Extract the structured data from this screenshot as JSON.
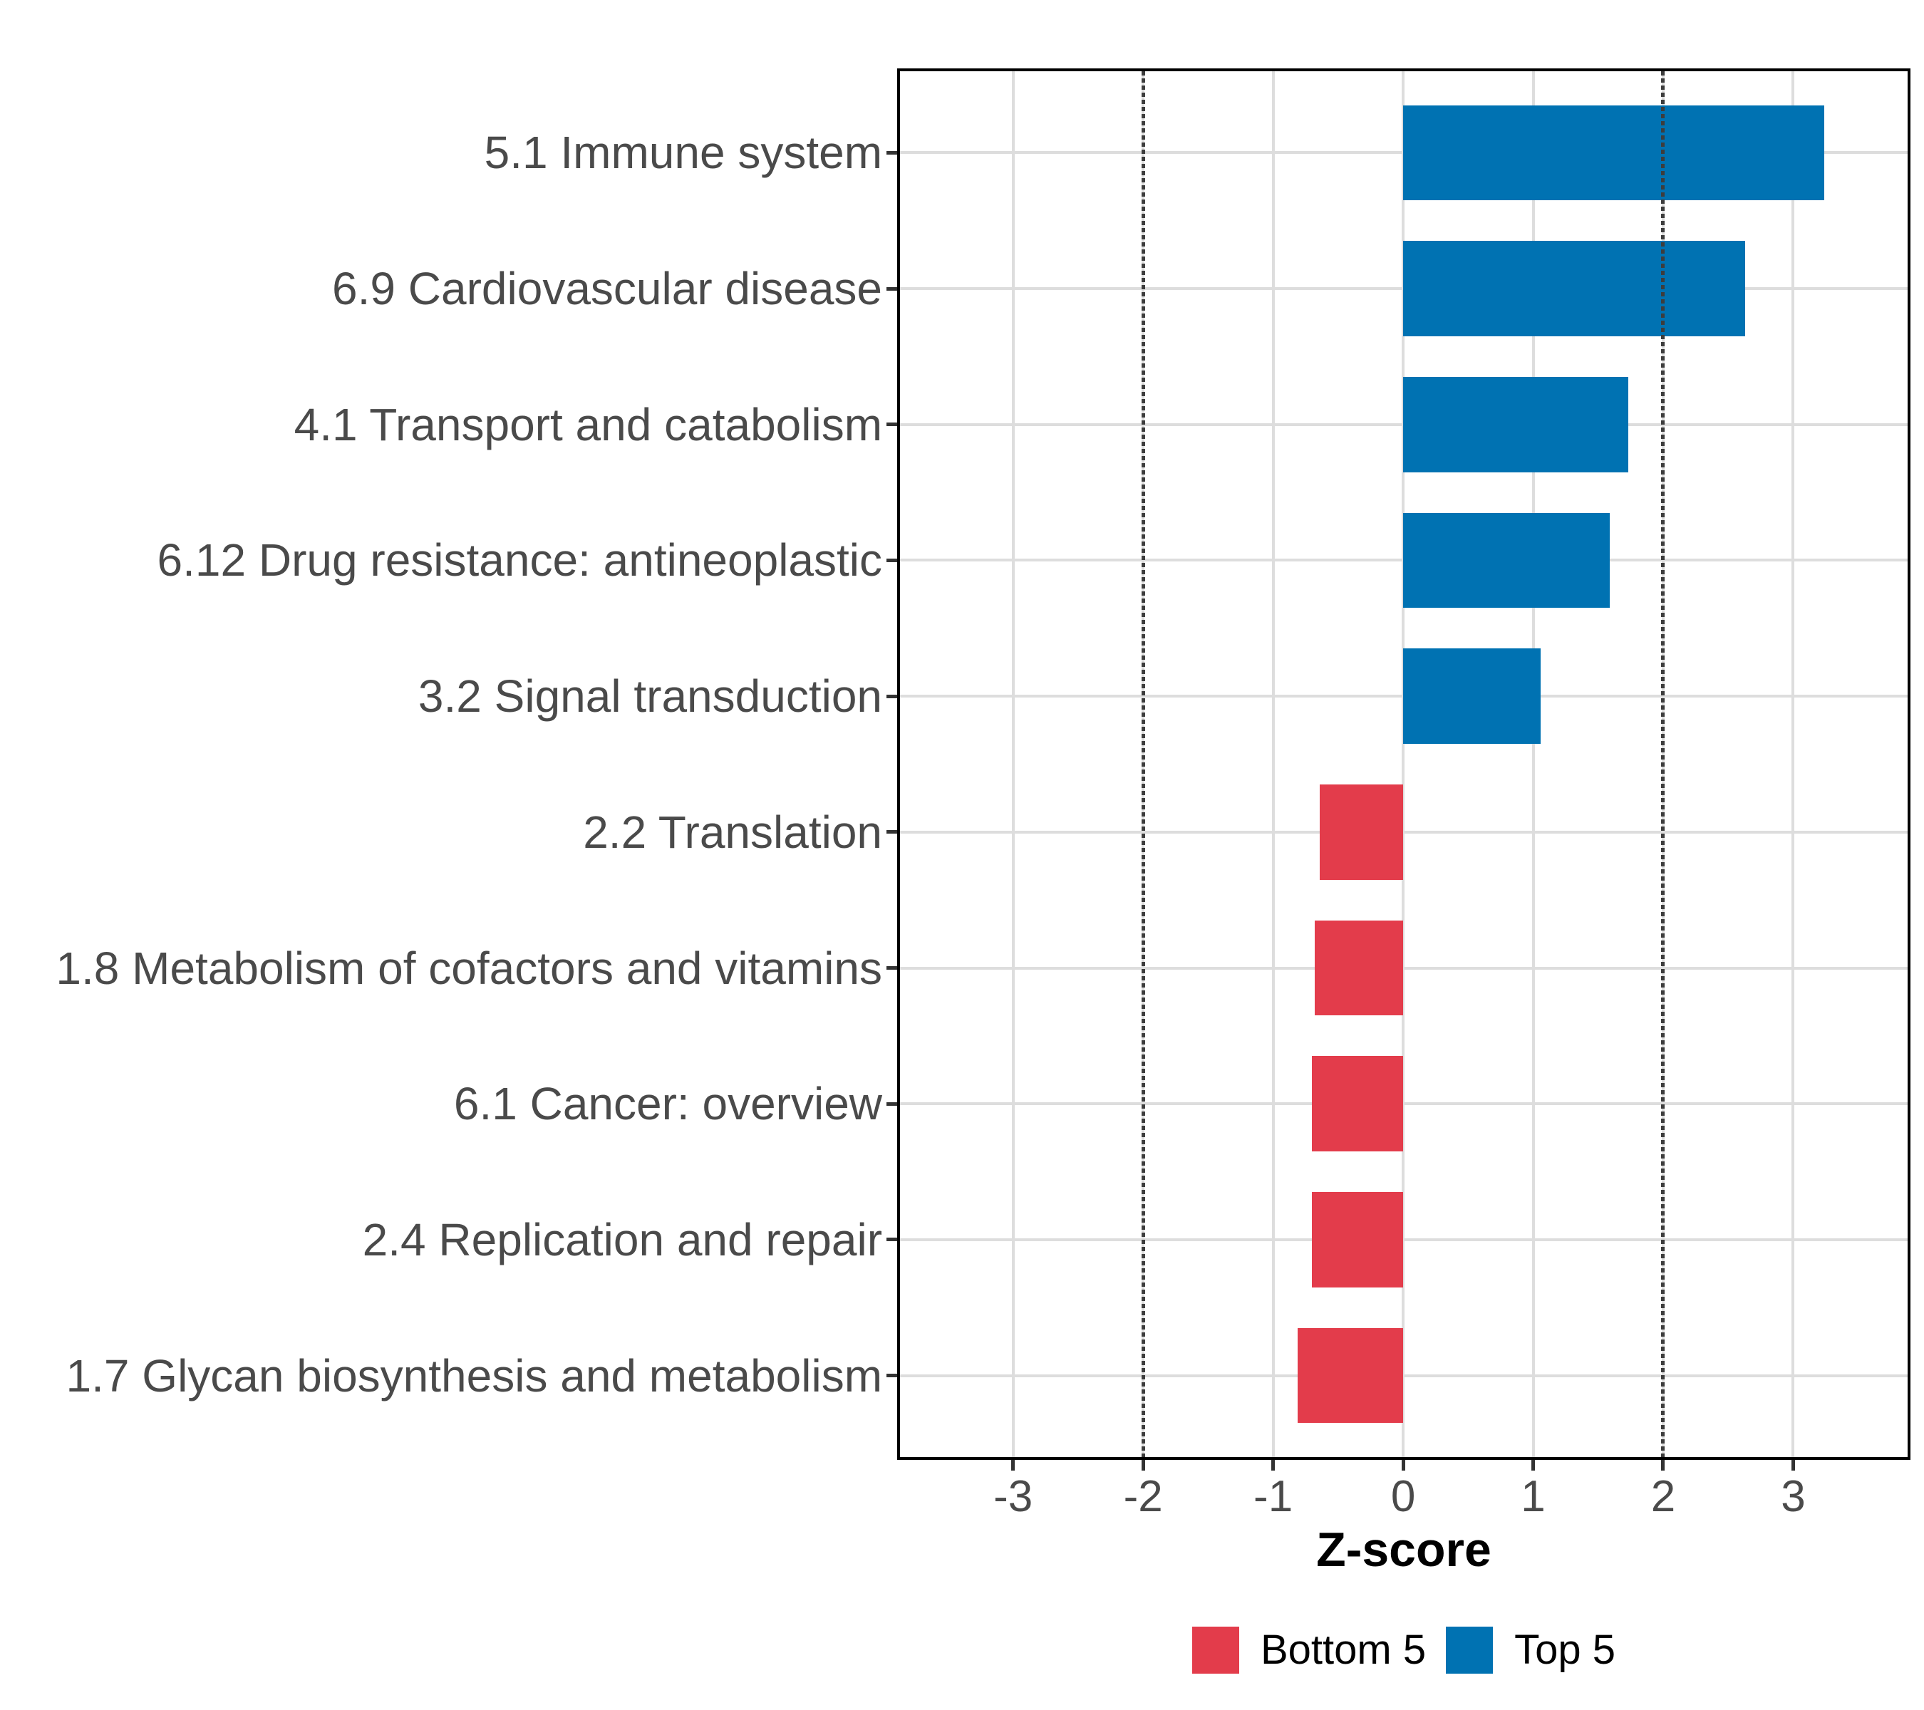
{
  "chart_data": {
    "type": "bar",
    "orientation": "horizontal",
    "title": "",
    "xlabel": "Z-score",
    "categories": [
      "5.1 Immune system",
      "6.9 Cardiovascular disease",
      "4.1 Transport and catabolism",
      "6.12 Drug resistance: antineoplastic",
      "3.2 Signal transduction",
      "2.2 Translation",
      "1.8 Metabolism of cofactors and vitamins",
      "6.1 Cancer: overview",
      "2.4 Replication and repair",
      "1.7 Glycan biosynthesis and metabolism"
    ],
    "values": [
      3.24,
      2.63,
      1.73,
      1.59,
      1.06,
      -0.64,
      -0.68,
      -0.7,
      -0.7,
      -0.81
    ],
    "groups": [
      "Top 5",
      "Top 5",
      "Top 5",
      "Top 5",
      "Top 5",
      "Bottom 5",
      "Bottom 5",
      "Bottom 5",
      "Bottom 5",
      "Bottom 5"
    ],
    "group_colors": {
      "Bottom 5": "#E33C4B",
      "Top 5": "#0072B2"
    },
    "x_ticks": [
      -3,
      -2,
      -1,
      0,
      1,
      2,
      3
    ],
    "xlim": [
      -3.87,
      3.88
    ],
    "bar_width_fraction": 0.7,
    "reference_lines": {
      "values": [
        -2,
        2
      ],
      "style": "dotted",
      "color": "#3D3D3D"
    },
    "grid": {
      "major": true,
      "color": "#DDDDDD"
    },
    "axis_text_color": "#4A4A4A",
    "legend": {
      "position": "bottom",
      "entries": [
        {
          "label": "Bottom 5",
          "color": "#E33C4B"
        },
        {
          "label": "Top 5",
          "color": "#0072B2"
        }
      ]
    }
  }
}
